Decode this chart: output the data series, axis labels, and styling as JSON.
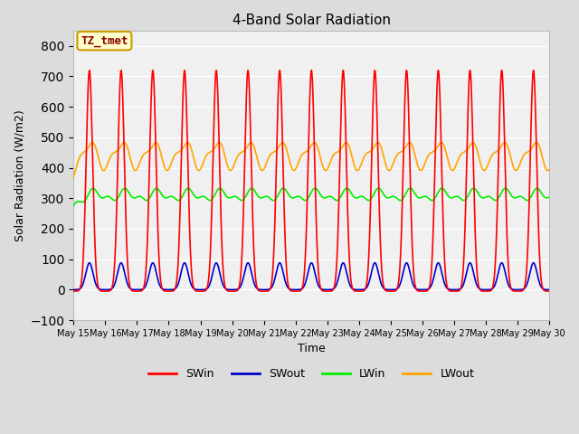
{
  "title": "4-Band Solar Radiation",
  "xlabel": "Time",
  "ylabel": "Solar Radiation (W/m2)",
  "ylim": [
    -100,
    850
  ],
  "yticks": [
    -100,
    0,
    100,
    200,
    300,
    400,
    500,
    600,
    700,
    800
  ],
  "num_days": 15,
  "day_start": 15,
  "annotation_text": "TZ_tmet",
  "annotation_color": "#8B0000",
  "annotation_bg": "#FFFFCC",
  "annotation_border": "#CC9900",
  "SWin_color": "#FF0000",
  "SWout_color": "#0000CC",
  "LWin_color": "#00EE00",
  "LWout_color": "#FFA500",
  "bg_color": "#DCDCDC",
  "plot_bg": "#F0F0F0",
  "grid_color": "#FFFFFF",
  "legend_items": [
    {
      "label": "SWin",
      "color": "#FF0000"
    },
    {
      "label": "SWout",
      "color": "#0000CC"
    },
    {
      "label": "LWin",
      "color": "#00EE00"
    },
    {
      "label": "LWout",
      "color": "#FFA500"
    }
  ]
}
